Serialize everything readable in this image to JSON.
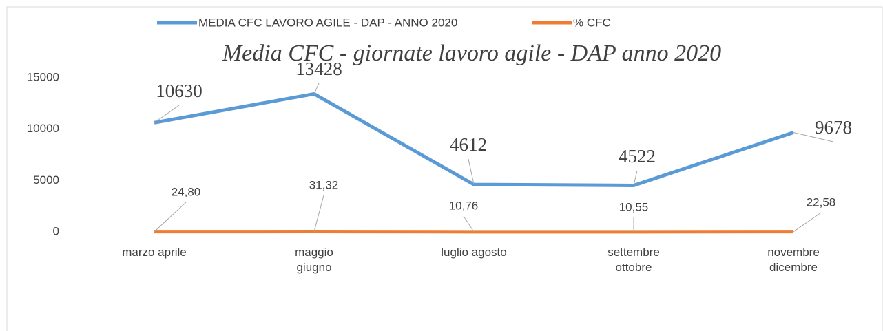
{
  "chart_data": {
    "type": "line",
    "title": "Media CFC - giornate lavoro agile - DAP anno 2020",
    "categories": [
      "marzo aprile",
      "maggio giugno",
      "luglio agosto",
      "settembre ottobre",
      "novembre dicembre"
    ],
    "series": [
      {
        "name": "MEDIA CFC LAVORO AGILE - DAP - ANNO 2020",
        "color": "#5b9bd5",
        "values": [
          10630,
          13428,
          4612,
          4522,
          9678
        ]
      },
      {
        "name": "% CFC",
        "color": "#ed7d31",
        "values": [
          24.8,
          31.32,
          10.76,
          10.55,
          22.58
        ],
        "value_labels": [
          "24,80",
          "31,32",
          "10,76",
          "10,55",
          "22,58"
        ]
      }
    ],
    "ylim": [
      0,
      15000
    ],
    "yticks": [
      0,
      5000,
      10000,
      15000
    ],
    "grid": false,
    "legend": "top"
  }
}
